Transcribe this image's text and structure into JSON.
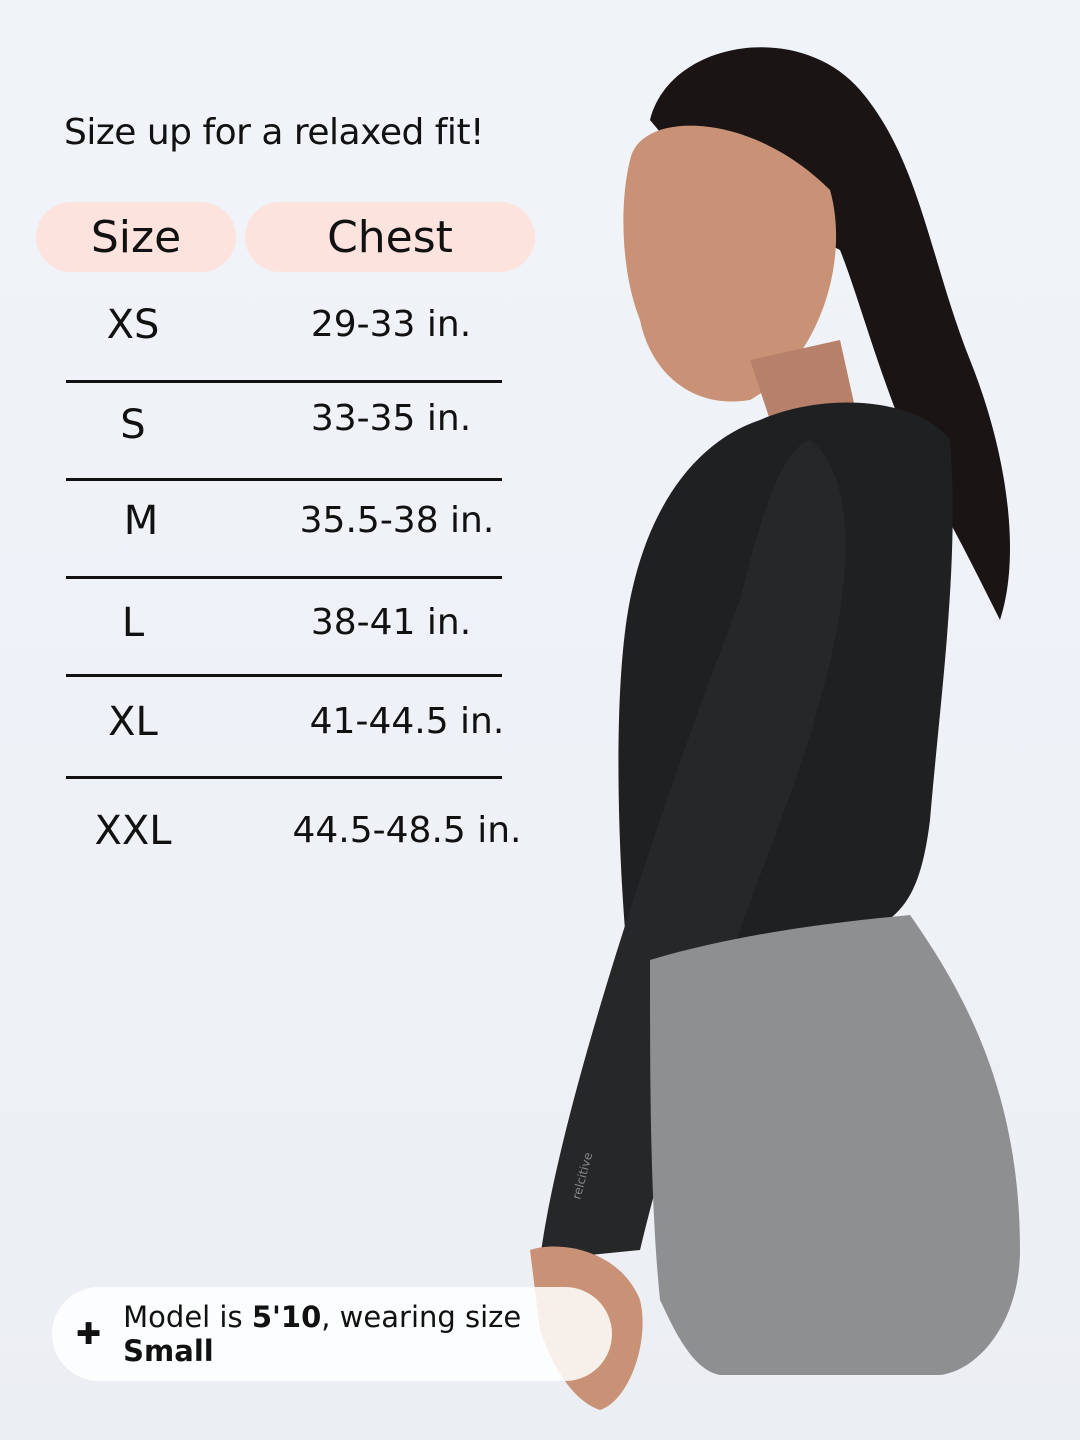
{
  "tagline": "Size up for a relaxed fit!",
  "table": {
    "headers": {
      "size": "Size",
      "chest": "Chest"
    },
    "rows": [
      {
        "size": "XS",
        "chest": "29-33 in."
      },
      {
        "size": "S",
        "chest": "33-35 in."
      },
      {
        "size": "M",
        "chest": "35.5-38 in."
      },
      {
        "size": "L",
        "chest": "38-41 in."
      },
      {
        "size": "XL",
        "chest": "41-44.5 in."
      },
      {
        "size": "XXL",
        "chest": "44.5-48.5 in."
      }
    ]
  },
  "note": {
    "icon": "plus-icon",
    "prefix": "Model is ",
    "height": "5'10",
    "middle": ", wearing size ",
    "size": "Small"
  },
  "sleeve_logo": "relcitive",
  "colors": {
    "header_pill": "#fde3dd",
    "background": "#eff3f8",
    "top": "#1f2022",
    "shorts": "#8e8f91"
  }
}
